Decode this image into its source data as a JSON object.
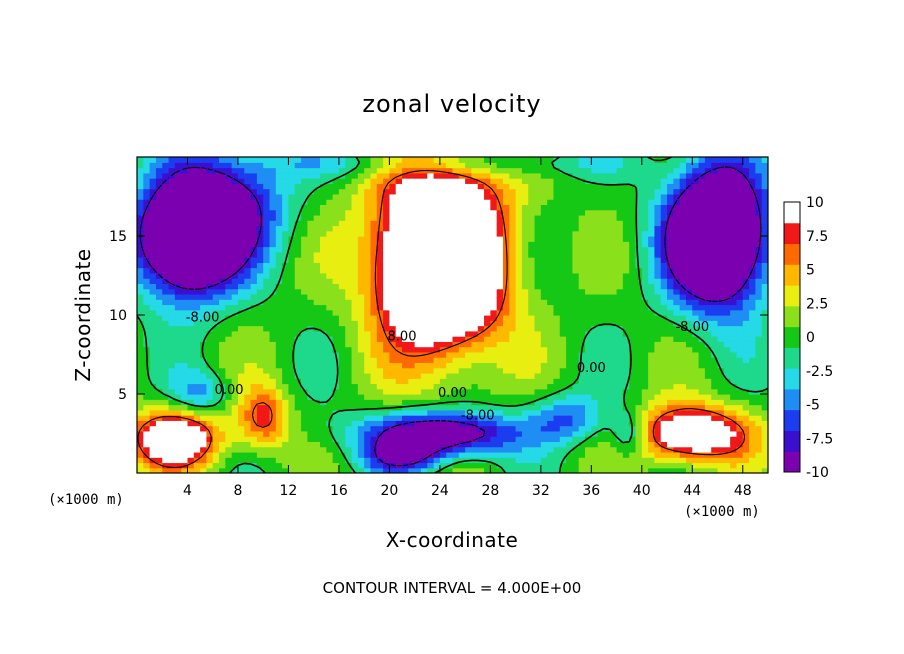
{
  "chart_data": {
    "type": "heatmap",
    "title": "zonal velocity",
    "xlabel": "X-coordinate",
    "ylabel": "Z-coordinate",
    "x_unit_label": "(×1000 m)",
    "x_unit_label_right": "(×1000 m)",
    "xlim": [
      0,
      50
    ],
    "ylim": [
      0,
      20
    ],
    "x_ticks": [
      "4",
      "8",
      "12",
      "16",
      "20",
      "24",
      "28",
      "32",
      "36",
      "40",
      "44",
      "48"
    ],
    "y_ticks": [
      "5",
      "10",
      "15"
    ],
    "colorbar_ticks": [
      "10",
      "7.5",
      "5",
      "2.5",
      "0",
      "-2.5",
      "-5",
      "-7.5",
      "-10"
    ],
    "color_range": [
      -10,
      10
    ],
    "footer": "CONTOUR INTERVAL = 4.000E+00",
    "contour_labels": [
      {
        "text": "-8.00",
        "x": 5.2,
        "y": 9.6
      },
      {
        "text": "8.00",
        "x": 21.0,
        "y": 8.4
      },
      {
        "text": "0.00",
        "x": 7.3,
        "y": 5.0
      },
      {
        "text": "0.00",
        "x": 25.0,
        "y": 4.8
      },
      {
        "text": "-8.00",
        "x": 27.0,
        "y": 3.4
      },
      {
        "text": "0.00",
        "x": 36.0,
        "y": 6.4
      },
      {
        "text": "-8.00",
        "x": 44.0,
        "y": 9.0
      }
    ],
    "field_blobs": [
      {
        "x": 24,
        "y": 14,
        "sx": 5,
        "sy": 6,
        "a": 22
      },
      {
        "x": 24,
        "y": 12,
        "sx": 4,
        "sy": 3,
        "a": 6
      },
      {
        "x": 4,
        "y": 15,
        "sx": 3.8,
        "sy": 3.5,
        "a": -24
      },
      {
        "x": 46,
        "y": 15,
        "sx": 3.8,
        "sy": 4.2,
        "a": -24
      },
      {
        "x": 8,
        "y": 17,
        "sx": 4,
        "sy": 3.5,
        "a": -8
      },
      {
        "x": 24,
        "y": 19.6,
        "sx": 14,
        "sy": 0.9,
        "a": -4
      },
      {
        "x": 24,
        "y": 2.5,
        "sx": 6,
        "sy": 1.4,
        "a": -14
      },
      {
        "x": 21,
        "y": 1,
        "sx": 3,
        "sy": 1,
        "a": -8
      },
      {
        "x": 3,
        "y": 2.2,
        "sx": 3.5,
        "sy": 1.8,
        "a": 14
      },
      {
        "x": 10,
        "y": 3.5,
        "sx": 2,
        "sy": 2,
        "a": 8
      },
      {
        "x": 44,
        "y": 2.5,
        "sx": 4.5,
        "sy": 1.8,
        "a": 14
      },
      {
        "x": 39,
        "y": 2.5,
        "sx": 1.5,
        "sy": 1.5,
        "a": -6
      },
      {
        "x": 5,
        "y": 5,
        "sx": 2.2,
        "sy": 1.4,
        "a": -5
      },
      {
        "x": 34,
        "y": 3.5,
        "sx": 3,
        "sy": 1.5,
        "a": -6
      }
    ],
    "field_base": 1,
    "palette": [
      "#7a00b0",
      "#3a0fd0",
      "#1c3cf0",
      "#1e8ef5",
      "#25d9e6",
      "#1ed98c",
      "#16c816",
      "#8ae01a",
      "#e8ee10",
      "#ffb800",
      "#ff6a00",
      "#f01818",
      "#ff8a8a",
      "#ffffff"
    ]
  }
}
